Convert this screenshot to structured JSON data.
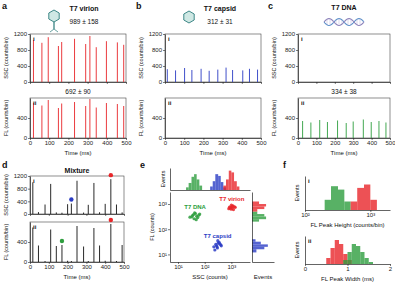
{
  "chart_data": [
    {
      "type": "spike",
      "panel_label": "a",
      "title": "T7 virion",
      "subpanel_label": "i",
      "annotation": "989 ± 158",
      "ylabel": "SSC (counts/bin)",
      "color": "#e8262a",
      "x": [
        18,
        62,
        95,
        148,
        165,
        232,
        290,
        312,
        345,
        398,
        455,
        488
      ],
      "values": [
        1050,
        980,
        1120,
        900,
        1000,
        1080,
        950,
        1150,
        870,
        1020,
        990,
        930
      ],
      "xlim": [
        0,
        500
      ],
      "xticks": [
        0,
        100,
        200,
        300,
        400,
        500
      ],
      "ylim": [
        0,
        1200
      ],
      "yticks": [
        0,
        400,
        800,
        1200
      ],
      "tick_labels": "y"
    },
    {
      "type": "spike",
      "subpanel_label": "ii",
      "annotation": "692 ± 90",
      "ylabel": "FL (counts/bin)",
      "xlabel": "Time (ms)",
      "color": "#e8262a",
      "x": [
        18,
        62,
        95,
        148,
        165,
        232,
        290,
        312,
        345,
        398,
        455,
        488
      ],
      "values": [
        700,
        650,
        760,
        600,
        690,
        720,
        640,
        780,
        610,
        700,
        680,
        640
      ],
      "xlim": [
        0,
        500
      ],
      "xticks": [
        0,
        100,
        200,
        300,
        400,
        500
      ],
      "ylim": [
        0,
        800
      ],
      "yticks": [
        0,
        400
      ]
    },
    {
      "type": "spike",
      "panel_label": "b",
      "title": "T7 capsid",
      "subpanel_label": "i",
      "annotation": "312 ± 31",
      "ylabel": "SSC (counts/bin)",
      "color": "#2b3cc4",
      "x": [
        12,
        55,
        102,
        140,
        188,
        230,
        275,
        318,
        352,
        405,
        440,
        482
      ],
      "values": [
        320,
        290,
        350,
        300,
        330,
        280,
        310,
        360,
        300,
        290,
        330,
        310
      ],
      "xlim": [
        0,
        500
      ],
      "xticks": [
        0,
        100,
        200,
        300,
        400,
        500
      ],
      "ylim": [
        0,
        1200
      ],
      "yticks": [
        0,
        400,
        800,
        1200
      ],
      "tick_labels": "y"
    },
    {
      "type": "spike",
      "subpanel_label": "ii",
      "ylabel": "FL (counts/bin)",
      "xlabel": "Time (ms)",
      "x": [],
      "values": [],
      "xlim": [
        0,
        500
      ],
      "xticks": [
        0,
        100,
        200,
        300,
        400,
        500
      ],
      "ylim": [
        0,
        800
      ],
      "yticks": [
        0,
        400
      ]
    },
    {
      "type": "spike",
      "panel_label": "c",
      "title": "T7 DNA",
      "subpanel_label": "i",
      "ylabel": "SSC (counts/bin)",
      "x": [],
      "values": [],
      "xlim": [
        0,
        500
      ],
      "xticks": [
        0,
        100,
        200,
        300,
        400,
        500
      ],
      "ylim": [
        0,
        1200
      ],
      "yticks": [
        0,
        400,
        800,
        1200
      ],
      "tick_labels": "y"
    },
    {
      "type": "spike",
      "subpanel_label": "ii",
      "annotation": "334 ± 38",
      "ylabel": "FL (counts/bin)",
      "xlabel": "Time (ms)",
      "color": "#2e9e3e",
      "x": [
        25,
        70,
        118,
        160,
        215,
        262,
        300,
        355,
        398,
        440,
        478
      ],
      "values": [
        340,
        310,
        360,
        320,
        350,
        300,
        330,
        370,
        320,
        340,
        310
      ],
      "xlim": [
        0,
        500
      ],
      "xticks": [
        0,
        100,
        200,
        300,
        400,
        500
      ],
      "ylim": [
        0,
        800
      ],
      "yticks": [
        0,
        400
      ]
    },
    {
      "type": "spike",
      "panel_label": "d",
      "title": "Mixture",
      "subpanel_label": "i",
      "ylabel": "SSC (counts/bin)",
      "color": "#111111",
      "x": [
        15,
        45,
        80,
        110,
        140,
        170,
        200,
        220,
        250,
        285,
        310,
        340,
        370,
        400,
        430,
        460,
        490
      ],
      "values": [
        1000,
        60,
        300,
        950,
        50,
        40,
        310,
        330,
        1050,
        45,
        290,
        980,
        55,
        320,
        1100,
        300,
        50
      ],
      "highlights": {
        "x": [
          220,
          430
        ],
        "values": [
          330,
          1100
        ],
        "colors": [
          "#2b3cc4",
          "#e8262a"
        ]
      },
      "xlim": [
        0,
        500
      ],
      "xticks": [
        0,
        100,
        200,
        300,
        400,
        500
      ],
      "ylim": [
        0,
        1200
      ],
      "yticks": [
        0,
        400,
        800,
        1200
      ],
      "tick_labels": "y"
    },
    {
      "type": "spike",
      "subpanel_label": "ii",
      "ylabel": "FL (counts/bin)",
      "xlabel": "Time (ms)",
      "color": "#111111",
      "x": [
        15,
        45,
        80,
        110,
        140,
        170,
        200,
        220,
        250,
        285,
        310,
        340,
        370,
        400,
        430,
        460,
        490
      ],
      "values": [
        690,
        330,
        20,
        650,
        320,
        340,
        25,
        20,
        720,
        310,
        20,
        680,
        330,
        25,
        760,
        20,
        340
      ],
      "highlights": {
        "x": [
          170,
          430
        ],
        "values": [
          340,
          760
        ],
        "colors": [
          "#2e9e3e",
          "#e8262a"
        ]
      },
      "xlim": [
        0,
        500
      ],
      "xticks": [
        0,
        100,
        200,
        300,
        400,
        500
      ],
      "ylim": [
        0,
        800
      ],
      "yticks": [
        0,
        400
      ]
    },
    {
      "type": "scatter",
      "panel_label": "e",
      "xlabel": "SSC (counts)",
      "ylabel": "FL (counts)",
      "log": true,
      "xlim": [
        5,
        5000
      ],
      "ylim": [
        5,
        3000
      ],
      "xticks": [
        {
          "value": 10,
          "label": "10¹"
        },
        {
          "value": 100,
          "label": "10²"
        },
        {
          "value": 1000,
          "label": "10³"
        }
      ],
      "yticks": [
        {
          "value": 10,
          "label": "10¹"
        },
        {
          "value": 100,
          "label": "10²"
        },
        {
          "value": 1000,
          "label": "10³"
        }
      ],
      "series": [
        {
          "name": "T7 DNA",
          "color": "#2e9e3e",
          "x": [
            28,
            35,
            40,
            45,
            50,
            38,
            55,
            42,
            60,
            33,
            48,
            65
          ],
          "values": [
            300,
            350,
            260,
            420,
            330,
            380,
            290,
            450,
            360,
            310,
            240,
            400
          ]
        },
        {
          "name": "T7 virion",
          "color": "#e8262a",
          "x": [
            800,
            950,
            1100,
            1200,
            1000,
            900,
            1300,
            1050,
            850,
            1150,
            980,
            1400
          ],
          "values": [
            650,
            720,
            800,
            600,
            900,
            700,
            780,
            680,
            750,
            850,
            620,
            740
          ]
        },
        {
          "name": "T7 capsid",
          "color": "#2b3cc4",
          "x": [
            220,
            260,
            300,
            350,
            280,
            320,
            400,
            240,
            370,
            310,
            290,
            420
          ],
          "values": [
            20,
            25,
            18,
            30,
            22,
            28,
            24,
            15,
            26,
            35,
            20,
            22
          ]
        }
      ]
    },
    {
      "type": "histogram",
      "ylabel": "Events",
      "log": "x",
      "xlim": [
        5,
        5000
      ],
      "ylim": [
        0,
        25
      ],
      "tick_labels": false,
      "series": [
        {
          "color": "#2e9e3e",
          "bins": [
            20,
            25,
            32,
            40,
            50,
            63,
            80
          ],
          "values": [
            3,
            8,
            15,
            18,
            12,
            5
          ]
        },
        {
          "color": "#2b3cc4",
          "bins": [
            160,
            200,
            250,
            320,
            400,
            500,
            630
          ],
          "values": [
            4,
            10,
            18,
            16,
            9,
            3
          ]
        },
        {
          "color": "#e8262a",
          "bins": [
            500,
            630,
            800,
            1000,
            1260,
            1600,
            2000
          ],
          "values": [
            5,
            12,
            22,
            20,
            10,
            4
          ]
        }
      ]
    },
    {
      "type": "histogram",
      "orientation": "horizontal",
      "xlabel": "Events",
      "log": "y",
      "xlim": [
        0,
        25
      ],
      "ylim": [
        5,
        3000
      ],
      "tick_labels": false,
      "series": [
        {
          "color": "#2b3cc4",
          "bins": [
            12,
            16,
            20,
            25,
            32,
            40
          ],
          "values": [
            5,
            14,
            18,
            10,
            4
          ]
        },
        {
          "color": "#2e9e3e",
          "bins": [
            200,
            250,
            320,
            400,
            500
          ],
          "values": [
            8,
            16,
            14,
            6
          ]
        },
        {
          "color": "#e8262a",
          "bins": [
            500,
            630,
            800,
            1000,
            1260
          ],
          "values": [
            6,
            14,
            16,
            8
          ]
        }
      ]
    },
    {
      "type": "histogram",
      "panel_label": "f",
      "subpanel_label": "i",
      "xlabel": "FL Peak Height (counts/bin)",
      "ylabel": "Events",
      "log": "x",
      "xlim": [
        100,
        2000
      ],
      "xticks": [
        {
          "value": 100,
          "label": "10²"
        },
        {
          "value": 1000,
          "label": "10³"
        }
      ],
      "ylim": [
        0,
        20
      ],
      "tick_labels": "x",
      "series": [
        {
          "color": "#2e9e3e",
          "bins": [
            200,
            250,
            320,
            400,
            500
          ],
          "values": [
            6,
            14,
            12,
            5
          ]
        },
        {
          "color": "#e8262a",
          "bins": [
            500,
            630,
            800,
            1000,
            1260
          ],
          "values": [
            5,
            13,
            15,
            6
          ]
        }
      ]
    },
    {
      "type": "histogram",
      "subpanel_label": "ii",
      "xlabel": "FL Peak Width (ms)",
      "ylabel": "Events",
      "xlim": [
        0,
        2
      ],
      "xticks": [
        0,
        1,
        2
      ],
      "ylim": [
        0,
        14
      ],
      "tick_labels": "x",
      "series": [
        {
          "color": "#e8262a",
          "bins": [
            0.5,
            0.6,
            0.7,
            0.8,
            0.9,
            1.0,
            1.1
          ],
          "values": [
            3,
            8,
            12,
            10,
            5,
            2
          ]
        },
        {
          "color": "#2e9e3e",
          "bins": [
            0.9,
            1.0,
            1.1,
            1.2,
            1.3,
            1.4,
            1.5,
            1.6
          ],
          "values": [
            2,
            6,
            10,
            9,
            6,
            3,
            1
          ]
        }
      ]
    }
  ]
}
